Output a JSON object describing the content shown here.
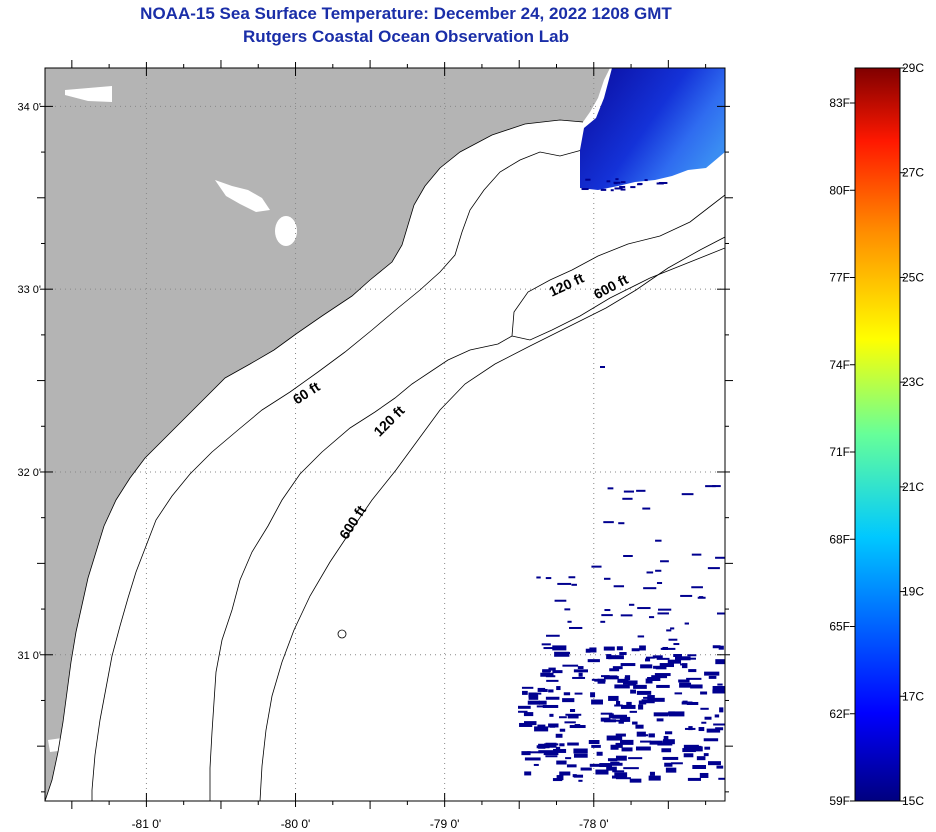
{
  "header": {
    "title": "NOAA-15 Sea Surface Temperature:  December 24, 2022 1208 GMT",
    "subtitle": "Rutgers Coastal Ocean Observation Lab"
  },
  "map": {
    "lon_range": [
      -81.68,
      -77.12
    ],
    "lat_range": [
      30.2,
      34.21
    ],
    "lat_ticks": [
      {
        "value": 34,
        "label": "34 0'"
      },
      {
        "value": 33,
        "label": "33 0'"
      },
      {
        "value": 32,
        "label": "32 0'"
      },
      {
        "value": 31,
        "label": "31 0'"
      }
    ],
    "lon_ticks": [
      {
        "value": -81,
        "label": "-81 0'"
      },
      {
        "value": -80,
        "label": "-80 0'"
      },
      {
        "value": -79,
        "label": "-79 0'"
      },
      {
        "value": -78,
        "label": "-78 0'"
      }
    ],
    "contour_labels": [
      {
        "text": "60 ft",
        "lon": -79.91,
        "lat": 32.41,
        "angle": -33
      },
      {
        "text": "120 ft",
        "lon": -79.35,
        "lat": 32.26,
        "angle": -45
      },
      {
        "text": "600 ft",
        "lon": -79.59,
        "lat": 31.71,
        "angle": -57
      },
      {
        "text": "120 ft",
        "lon": -78.17,
        "lat": 33.0,
        "angle": -25
      },
      {
        "text": "600 ft",
        "lon": -77.87,
        "lat": 32.99,
        "angle": -28
      }
    ],
    "colors": {
      "land": "#b4b4b4",
      "ocean": "#ffffff",
      "sst_low": "#00008f",
      "grid": "#888888"
    }
  },
  "colorbar": {
    "celsius_labels": [
      "29C",
      "27C",
      "25C",
      "23C",
      "21C",
      "19C",
      "17C",
      "15C"
    ],
    "fahrenheit_labels": [
      "83F",
      "80F",
      "77F",
      "74F",
      "71F",
      "68F",
      "65F",
      "62F",
      "59F"
    ]
  }
}
